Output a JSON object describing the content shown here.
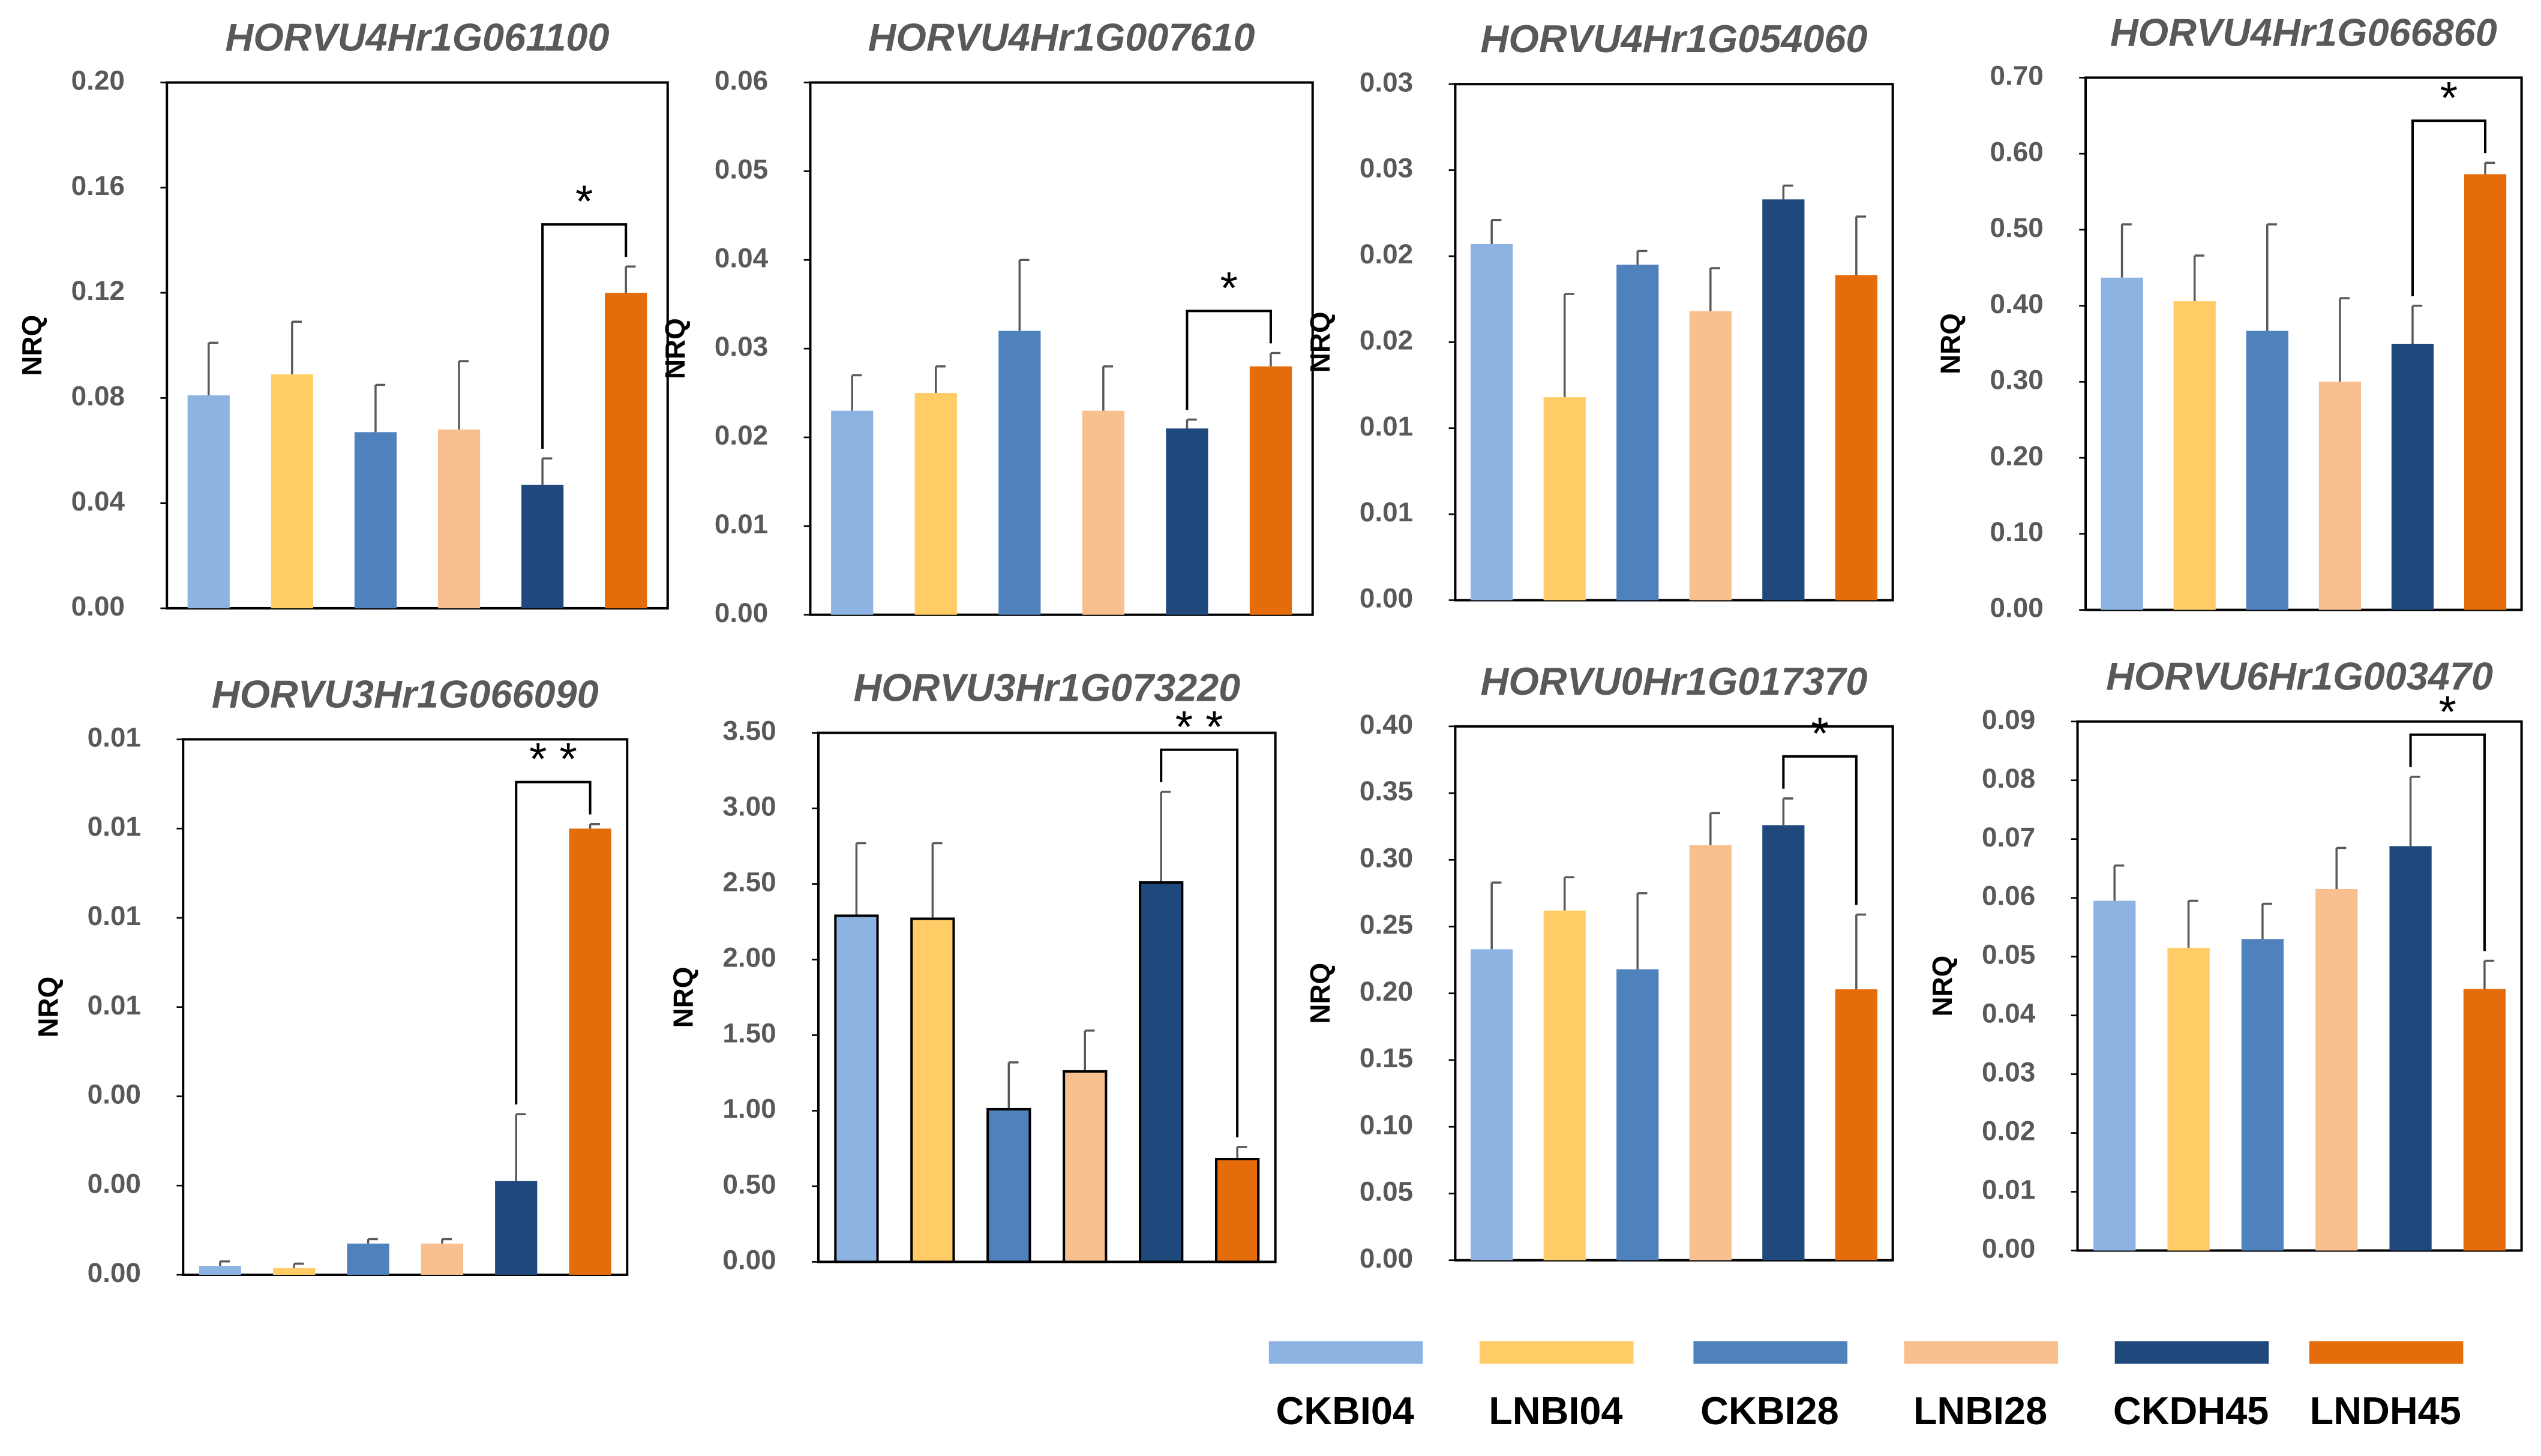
{
  "legend": [
    {
      "name": "CKBI04",
      "color": "#8db3e2"
    },
    {
      "name": "LNBI04",
      "color": "#ffcc66"
    },
    {
      "name": "CKBI28",
      "color": "#4f81bd"
    },
    {
      "name": "LNBI28",
      "color": "#f8bf8f"
    },
    {
      "name": "CKDH45",
      "color": "#1f497d"
    },
    {
      "name": "LNDH45",
      "color": "#e46c0a"
    }
  ],
  "chart_data": [
    {
      "type": "bar",
      "title": "HORVU4Hr1G061100",
      "ylabel": "NRQ",
      "values": [
        0.081,
        0.089,
        0.067,
        0.068,
        0.047,
        0.12
      ],
      "errors": [
        0.02,
        0.02,
        0.018,
        0.026,
        0.01,
        0.01
      ],
      "ylim": [
        0,
        0.2
      ],
      "yticks": [
        {
          "value": 0,
          "label": "0.00"
        },
        {
          "value": 0.04,
          "label": "0.04"
        },
        {
          "value": 0.08,
          "label": "0.08"
        },
        {
          "value": 0.12,
          "label": "0.12"
        },
        {
          "value": 0.16,
          "label": "0.16"
        },
        {
          "value": 0.2,
          "label": "0.20"
        }
      ],
      "significance": "*"
    },
    {
      "type": "bar",
      "title": "HORVU4Hr1G007610",
      "ylabel": "NRQ",
      "values": [
        0.023,
        0.025,
        0.032,
        0.023,
        0.021,
        0.028
      ],
      "errors": [
        0.004,
        0.003,
        0.008,
        0.005,
        0.001,
        0.0015
      ],
      "ylim": [
        0,
        0.06
      ],
      "yticks": [
        {
          "value": 0,
          "label": "0.00"
        },
        {
          "value": 0.01,
          "label": "0.01"
        },
        {
          "value": 0.02,
          "label": "0.02"
        },
        {
          "value": 0.03,
          "label": "0.03"
        },
        {
          "value": 0.04,
          "label": "0.04"
        },
        {
          "value": 0.05,
          "label": "0.05"
        },
        {
          "value": 0.06,
          "label": "0.06"
        }
      ],
      "significance": "*"
    },
    {
      "type": "bar",
      "title": "HORVU4Hr1G054060",
      "ylabel": "NRQ",
      "values": [
        0.0207,
        0.0118,
        0.0195,
        0.0168,
        0.0233,
        0.0189
      ],
      "errors": [
        0.0014,
        0.006,
        0.0008,
        0.0025,
        0.0008,
        0.0034
      ],
      "ylim": [
        0,
        0.03
      ],
      "yticks": [
        {
          "value": 0,
          "label": "0.00"
        },
        {
          "value": 0.005,
          "label": "0.01"
        },
        {
          "value": 0.01,
          "label": "0.01"
        },
        {
          "value": 0.015,
          "label": "0.02"
        },
        {
          "value": 0.02,
          "label": "0.02"
        },
        {
          "value": 0.025,
          "label": "0.03"
        },
        {
          "value": 0.03,
          "label": "0.03"
        }
      ]
    },
    {
      "type": "bar",
      "title": "HORVU4Hr1G066860",
      "ylabel": "NRQ",
      "values": [
        0.437,
        0.406,
        0.367,
        0.3,
        0.35,
        0.573
      ],
      "errors": [
        0.07,
        0.06,
        0.14,
        0.11,
        0.05,
        0.015
      ],
      "ylim": [
        0,
        0.7
      ],
      "yticks": [
        {
          "value": 0,
          "label": "0.00"
        },
        {
          "value": 0.1,
          "label": "0.10"
        },
        {
          "value": 0.2,
          "label": "0.20"
        },
        {
          "value": 0.3,
          "label": "0.30"
        },
        {
          "value": 0.4,
          "label": "0.40"
        },
        {
          "value": 0.5,
          "label": "0.50"
        },
        {
          "value": 0.6,
          "label": "0.60"
        },
        {
          "value": 0.7,
          "label": "0.70"
        }
      ],
      "significance": "*"
    },
    {
      "type": "bar",
      "title": "HORVU3Hr1G066090",
      "ylabel": "NRQ",
      "values": [
        0.0002,
        0.00015,
        0.0007,
        0.0007,
        0.0021,
        0.01
      ],
      "errors": [
        0.0001,
        0.0001,
        0.0001,
        0.0001,
        0.0015,
        0.0001
      ],
      "ylim": [
        0,
        0.012
      ],
      "yticks": [
        {
          "value": 0,
          "label": "0.00"
        },
        {
          "value": 0.002,
          "label": "0.00"
        },
        {
          "value": 0.004,
          "label": "0.00"
        },
        {
          "value": 0.006,
          "label": "0.01"
        },
        {
          "value": 0.008,
          "label": "0.01"
        },
        {
          "value": 0.01,
          "label": "0.01"
        },
        {
          "value": 0.012,
          "label": "0.01"
        }
      ],
      "significance": "* *"
    },
    {
      "type": "bar",
      "title": "HORVU3Hr1G073220",
      "ylabel": "NRQ",
      "values": [
        2.29,
        2.27,
        1.01,
        1.26,
        2.51,
        0.68
      ],
      "errors": [
        0.48,
        0.5,
        0.31,
        0.27,
        0.6,
        0.08
      ],
      "ylim": [
        0,
        3.5
      ],
      "yticks": [
        {
          "value": 0,
          "label": "0.00"
        },
        {
          "value": 0.5,
          "label": "0.50"
        },
        {
          "value": 1,
          "label": "1.00"
        },
        {
          "value": 1.5,
          "label": "1.50"
        },
        {
          "value": 2,
          "label": "2.00"
        },
        {
          "value": 2.5,
          "label": "2.50"
        },
        {
          "value": 3,
          "label": "3.00"
        },
        {
          "value": 3.5,
          "label": "3.50"
        }
      ],
      "significance": "* *",
      "outline": true
    },
    {
      "type": "bar",
      "title": "HORVU0Hr1G017370",
      "ylabel": "NRQ",
      "values": [
        0.233,
        0.262,
        0.218,
        0.311,
        0.326,
        0.203
      ],
      "errors": [
        0.05,
        0.025,
        0.057,
        0.024,
        0.02,
        0.056
      ],
      "ylim": [
        0,
        0.4
      ],
      "yticks": [
        {
          "value": 0,
          "label": "0.00"
        },
        {
          "value": 0.05,
          "label": "0.05"
        },
        {
          "value": 0.1,
          "label": "0.10"
        },
        {
          "value": 0.15,
          "label": "0.15"
        },
        {
          "value": 0.2,
          "label": "0.20"
        },
        {
          "value": 0.25,
          "label": "0.25"
        },
        {
          "value": 0.3,
          "label": "0.30"
        },
        {
          "value": 0.35,
          "label": "0.35"
        },
        {
          "value": 0.4,
          "label": "0.40"
        }
      ],
      "significance": "*"
    },
    {
      "type": "bar",
      "title": "HORVU6Hr1G003470",
      "ylabel": "NRQ",
      "values": [
        0.0595,
        0.0515,
        0.053,
        0.0615,
        0.0688,
        0.0445
      ],
      "errors": [
        0.006,
        0.008,
        0.006,
        0.007,
        0.0118,
        0.0048
      ],
      "ylim": [
        0,
        0.09
      ],
      "yticks": [
        {
          "value": 0,
          "label": "0.00"
        },
        {
          "value": 0.01,
          "label": "0.01"
        },
        {
          "value": 0.02,
          "label": "0.02"
        },
        {
          "value": 0.03,
          "label": "0.03"
        },
        {
          "value": 0.04,
          "label": "0.04"
        },
        {
          "value": 0.05,
          "label": "0.05"
        },
        {
          "value": 0.06,
          "label": "0.06"
        },
        {
          "value": 0.07,
          "label": "0.07"
        },
        {
          "value": 0.08,
          "label": "0.08"
        },
        {
          "value": 0.09,
          "label": "0.09"
        }
      ],
      "significance": "*"
    }
  ]
}
